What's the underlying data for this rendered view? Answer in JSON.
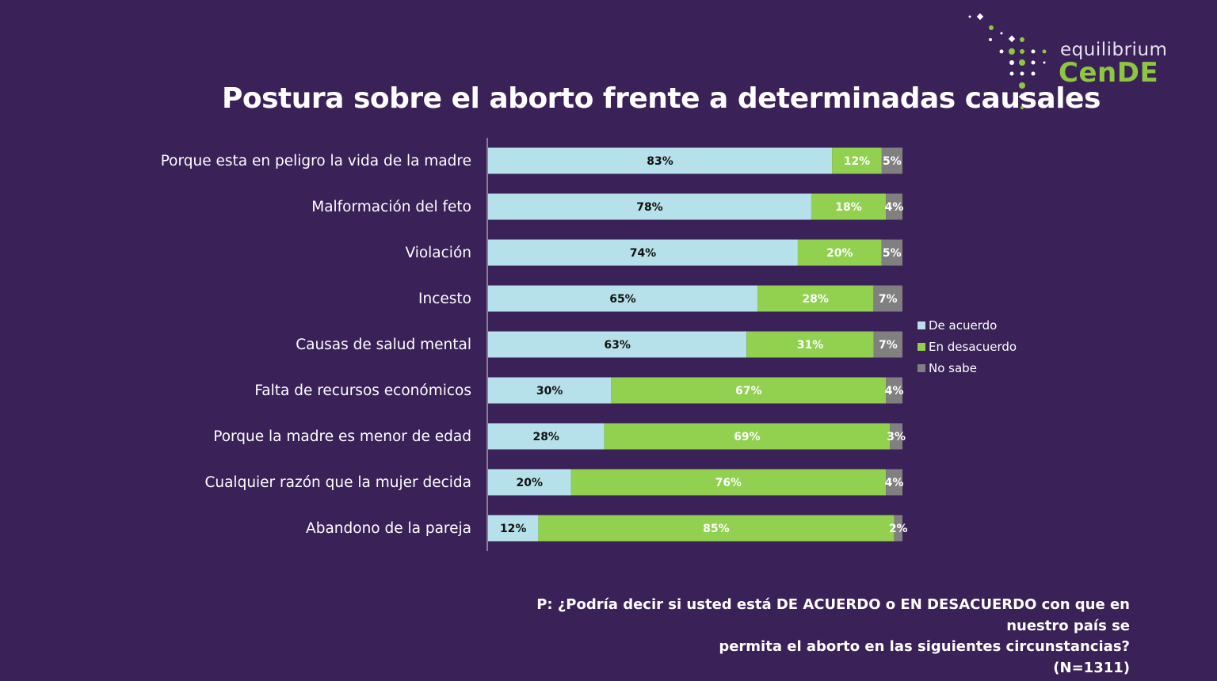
{
  "title": "Postura sobre el aborto frente a determinadas causales",
  "logo": {
    "line1": "equilibrium",
    "line2": "CenDE"
  },
  "question": {
    "line1": "P: ¿Podría decir si usted está DE ACUERDO o EN DESACUERDO con que en nuestro país se",
    "line2": "permita el aborto en las siguientes circunstancias?",
    "line3": "(N=1311)"
  },
  "chart_data": {
    "type": "bar",
    "orientation": "horizontal",
    "stacked": true,
    "title": "Postura sobre el aborto frente a determinadas causales",
    "categories": [
      "Porque esta en peligro la vida de la madre",
      "Malformación del feto",
      "Violación",
      "Incesto",
      "Causas de salud mental",
      "Falta de recursos económicos",
      "Porque la madre es menor de edad",
      "Cualquier razón que la mujer decida",
      "Abandono de la pareja"
    ],
    "series": [
      {
        "name": "De acuerdo",
        "color": "#b7e1ea",
        "label_color": "#111111",
        "values": [
          83,
          78,
          74,
          65,
          63,
          30,
          28,
          20,
          12
        ]
      },
      {
        "name": "En desacuerdo",
        "color": "#92d050",
        "label_color": "#ffffff",
        "values": [
          12,
          18,
          20,
          28,
          31,
          67,
          69,
          76,
          85
        ]
      },
      {
        "name": "No sabe",
        "color": "#808080",
        "label_color": "#ffffff",
        "values": [
          5,
          4,
          5,
          7,
          7,
          4,
          3,
          4,
          2
        ]
      }
    ],
    "value_suffix": "%",
    "legend_position": "right",
    "grid": false
  }
}
